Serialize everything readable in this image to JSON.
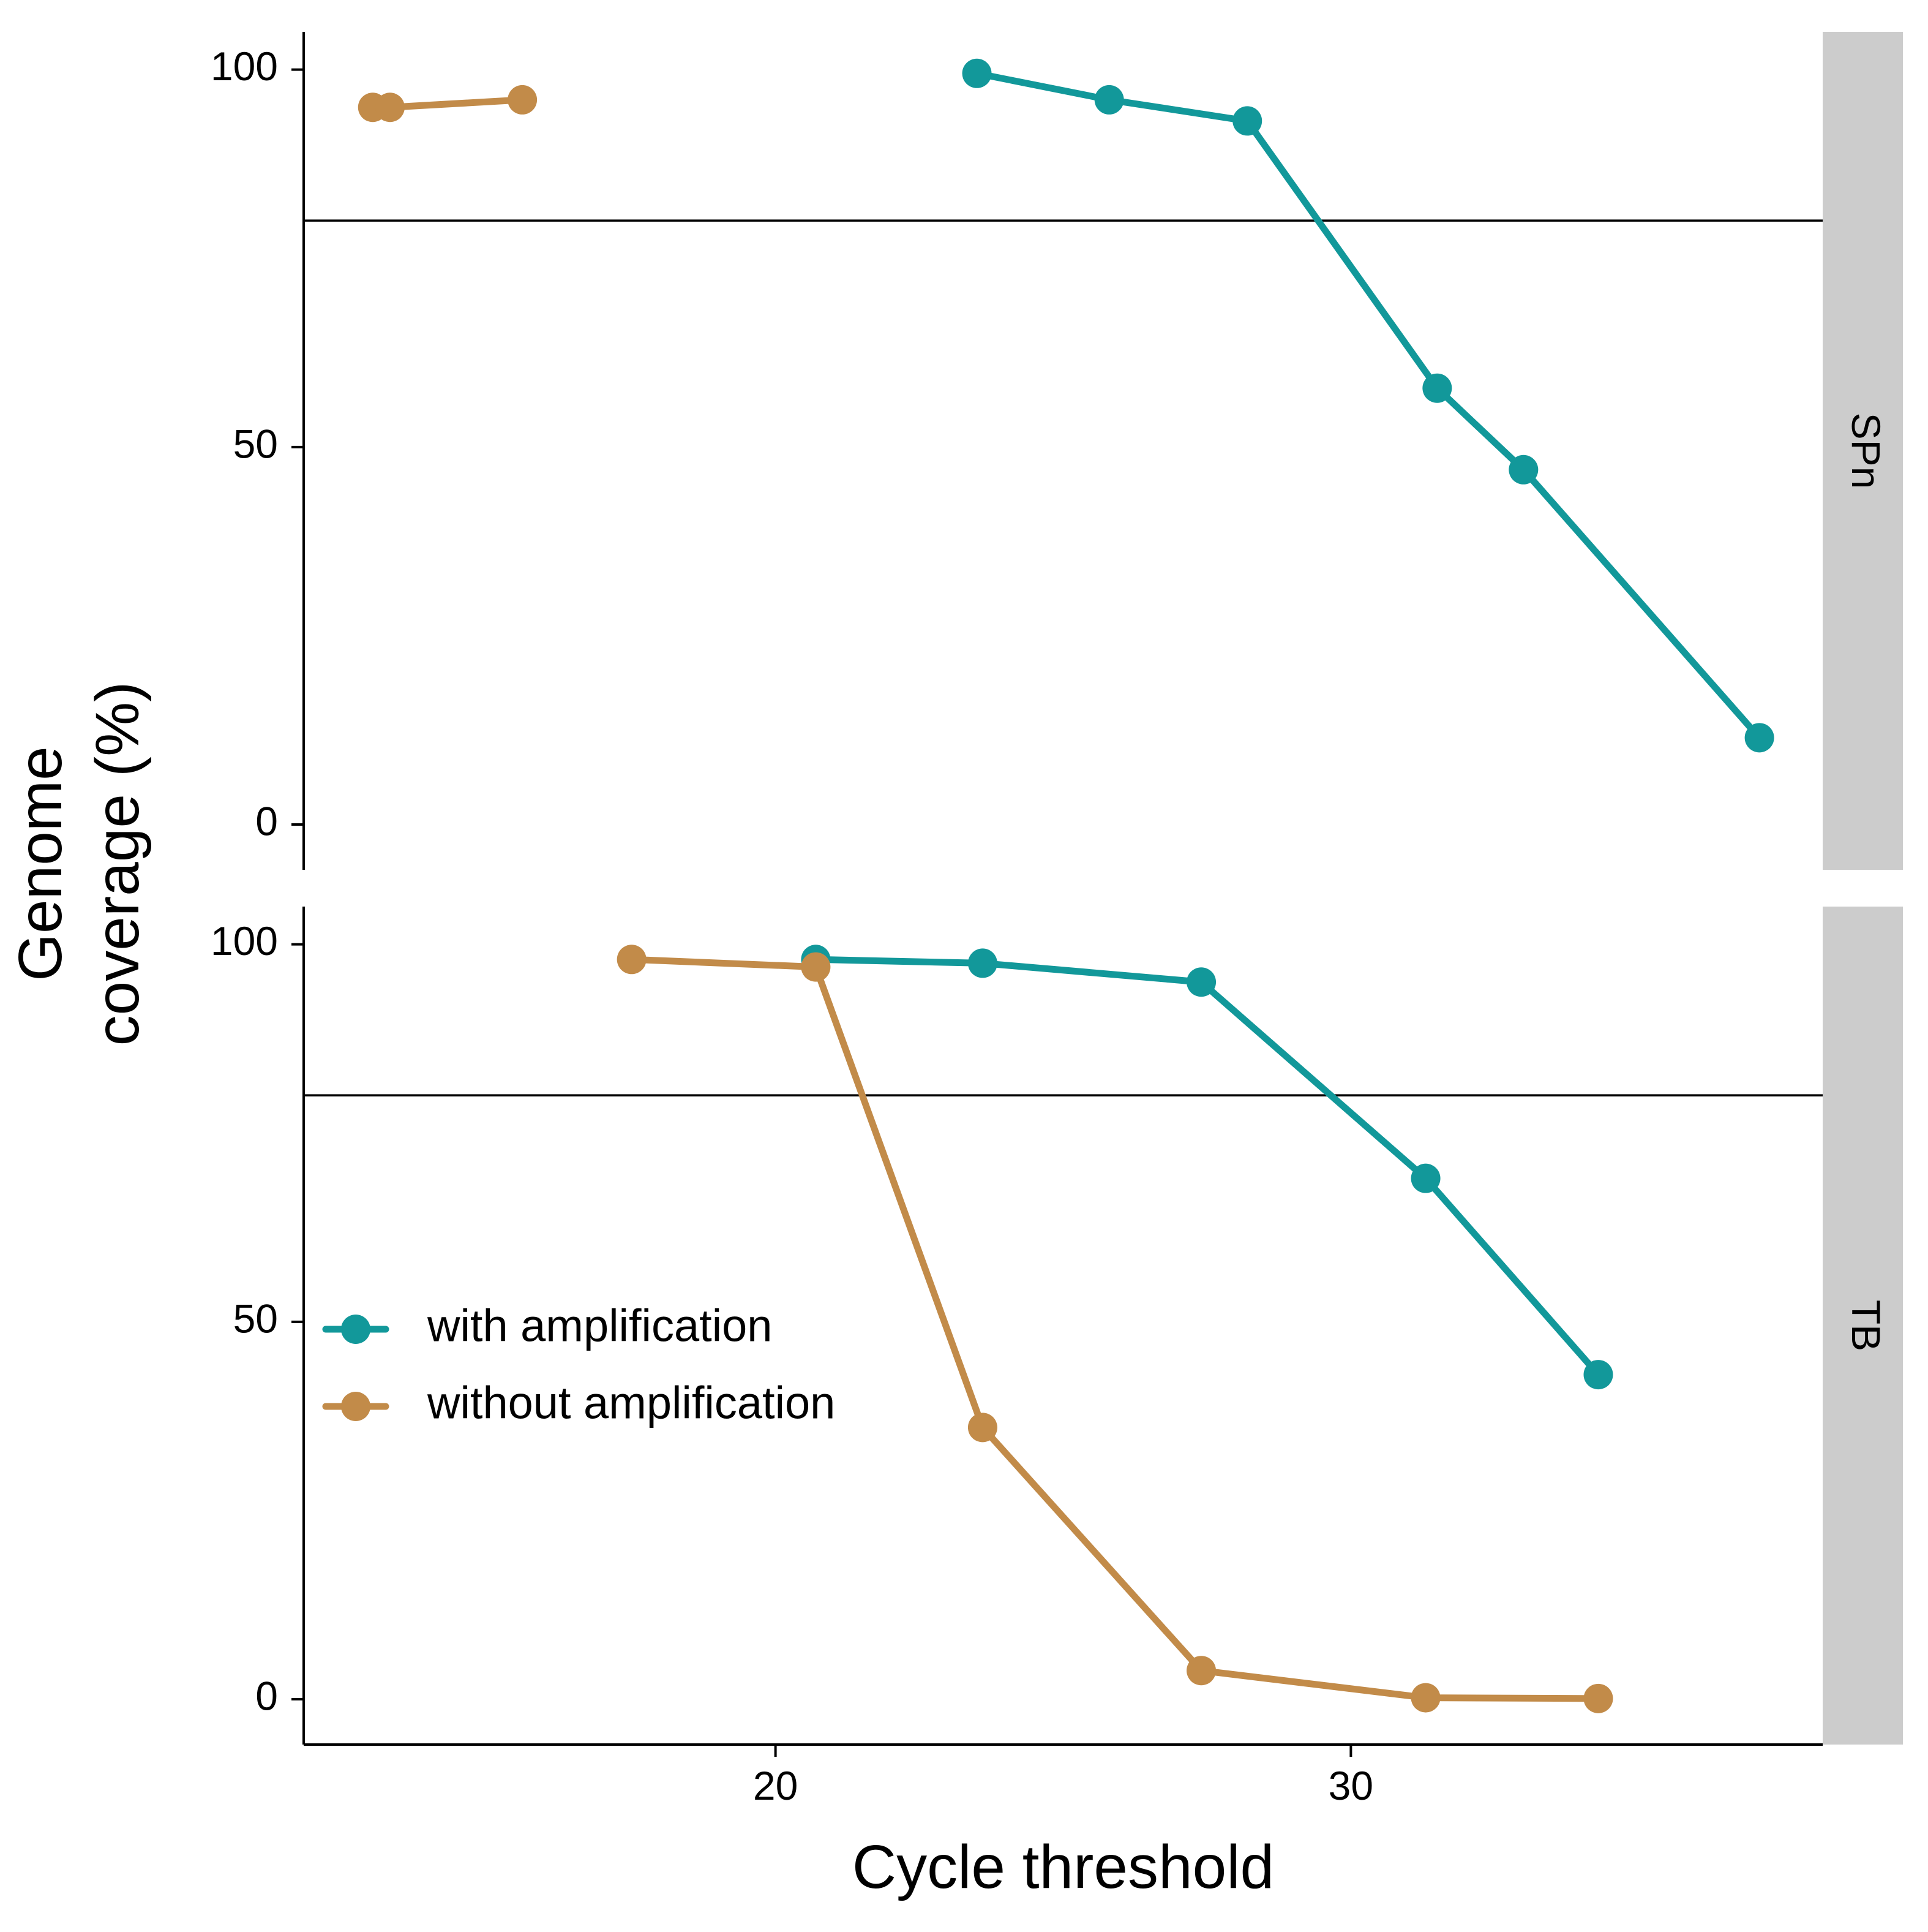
{
  "chart_data": {
    "type": "line",
    "xlabel": "Cycle threshold",
    "ylabel_lines": [
      "Genome",
      "coverage (%)"
    ],
    "x_ticks": [
      20,
      30
    ],
    "y_ticks": [
      0,
      50,
      100
    ],
    "xlim": [
      11.8,
      38.2
    ],
    "ylim": [
      -6,
      105
    ],
    "threshold_line": 80,
    "legend": {
      "position": "left-middle of lower panel"
    },
    "series_styles": [
      {
        "name": "with amplification",
        "color": "#12989A"
      },
      {
        "name": "without amplification",
        "color": "#C28B49"
      }
    ],
    "panels": [
      {
        "label": "SPn",
        "series": [
          {
            "name": "with amplification",
            "points": [
              [
                23.5,
                99.5
              ],
              [
                25.8,
                96.0
              ],
              [
                28.2,
                93.2
              ],
              [
                31.5,
                57.8
              ],
              [
                33.0,
                47.0
              ],
              [
                37.1,
                11.5
              ]
            ]
          },
          {
            "name": "without amplification",
            "points": [
              [
                13.0,
                95.0
              ],
              [
                13.3,
                95.0
              ],
              [
                15.6,
                96.0
              ]
            ]
          }
        ]
      },
      {
        "label": "TB",
        "series": [
          {
            "name": "with amplification",
            "points": [
              [
                20.7,
                98.0
              ],
              [
                23.6,
                97.5
              ],
              [
                27.4,
                95.0
              ],
              [
                31.3,
                69.0
              ],
              [
                34.3,
                43.0
              ]
            ]
          },
          {
            "name": "without amplification",
            "points": [
              [
                17.5,
                98.0
              ],
              [
                20.7,
                97.0
              ],
              [
                23.6,
                36.0
              ],
              [
                27.4,
                3.8
              ],
              [
                31.3,
                0.2
              ],
              [
                34.3,
                0.1
              ]
            ]
          }
        ]
      }
    ]
  }
}
